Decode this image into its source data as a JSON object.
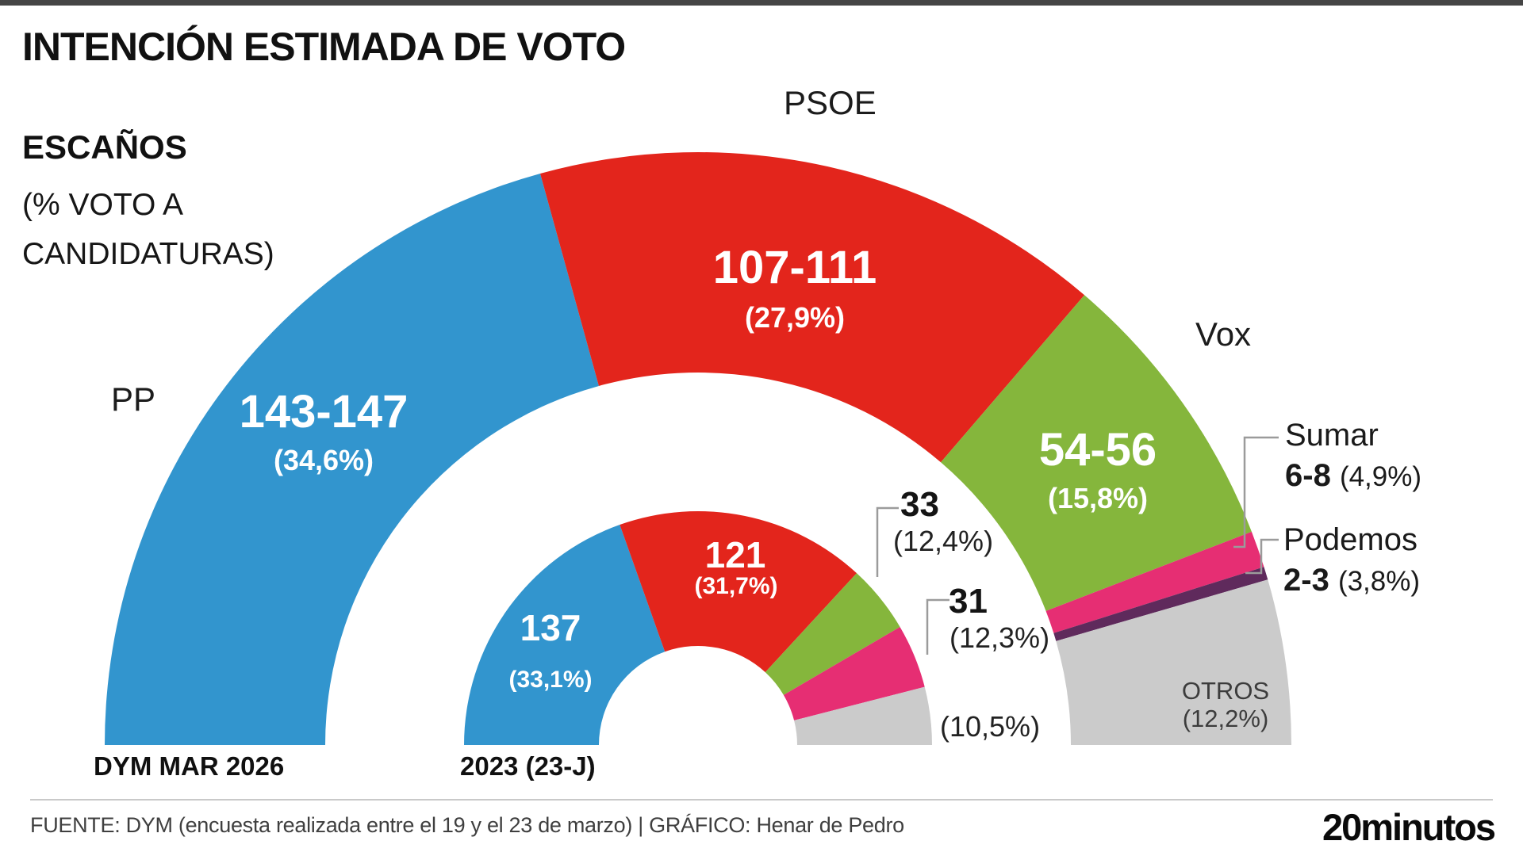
{
  "header": {
    "title": "INTENCIÓN ESTIMADA DE VOTO",
    "subtitle_bold": "ESCAÑOS",
    "subtitle_note": "(% VOTO A CANDIDATURAS)"
  },
  "footer": {
    "source": "FUENTE: DYM (encuesta realizada entre el 19 y el 23 de marzo)  |  GRÁFICO: Henar de Pedro",
    "brand": "20minutos"
  },
  "colors": {
    "pp_blue": "#3295ce",
    "psoe_red": "#e3251c",
    "vox_green": "#85b63c",
    "sumar_pink": "#e62e73",
    "podemos_purple": "#5f2a5c",
    "otros_gray": "#cbcbcb",
    "leader_line_gray": "#9b9b9b"
  },
  "chart_data": {
    "type": "half-donut",
    "description": "Two concentric hemicycle (parliament) rings; segment angles proportional to seats out of 350; outer ring = DYM poll March 2026, inner ring = 2023 general election result",
    "total_seats": 350,
    "legend_position": "labels on segments and external callouts",
    "rings": [
      {
        "id": "outer",
        "axis_label": "DYM MAR 2026",
        "segments": [
          {
            "party": "PP",
            "seats": "143-147",
            "seats_mid": 145,
            "pct": 34.6,
            "pct_label": "(34,6%)",
            "color": "#3295ce"
          },
          {
            "party": "PSOE",
            "seats": "107-111",
            "seats_mid": 109,
            "pct": 27.9,
            "pct_label": "(27,9%)",
            "color": "#e3251c"
          },
          {
            "party": "Vox",
            "seats": "54-56",
            "seats_mid": 55,
            "pct": 15.8,
            "pct_label": "(15,8%)",
            "color": "#85b63c"
          },
          {
            "party": "Sumar",
            "seats": "6-8",
            "seats_mid": 7,
            "pct": 4.9,
            "pct_label": "(4,9%)",
            "color": "#e62e73"
          },
          {
            "party": "Podemos",
            "seats": "2-3",
            "seats_mid": 2.5,
            "pct": 3.8,
            "pct_label": "(3,8%)",
            "color": "#5f2a5c"
          },
          {
            "party": "OTROS",
            "seats": "",
            "seats_mid": 31.5,
            "pct": 12.2,
            "pct_label": "(12,2%)",
            "color": "#cbcbcb"
          }
        ]
      },
      {
        "id": "inner",
        "axis_label": "2023 (23-J)",
        "segments": [
          {
            "party": "PP",
            "seats": "137",
            "seats_mid": 137,
            "pct": 33.1,
            "pct_label": "(33,1%)",
            "color": "#3295ce"
          },
          {
            "party": "PSOE",
            "seats": "121",
            "seats_mid": 121,
            "pct": 31.7,
            "pct_label": "(31,7%)",
            "color": "#e3251c"
          },
          {
            "party": "Vox",
            "seats": "33",
            "seats_mid": 33,
            "pct": 12.4,
            "pct_label": "(12,4%)",
            "color": "#85b63c"
          },
          {
            "party": "Sumar",
            "seats": "31",
            "seats_mid": 31,
            "pct": 12.3,
            "pct_label": "(12,3%)",
            "color": "#e62e73"
          },
          {
            "party": "OTROS",
            "seats": "",
            "seats_mid": 28,
            "pct": 10.5,
            "pct_label": "(10,5%)",
            "color": "#cbcbcb"
          }
        ]
      }
    ]
  }
}
